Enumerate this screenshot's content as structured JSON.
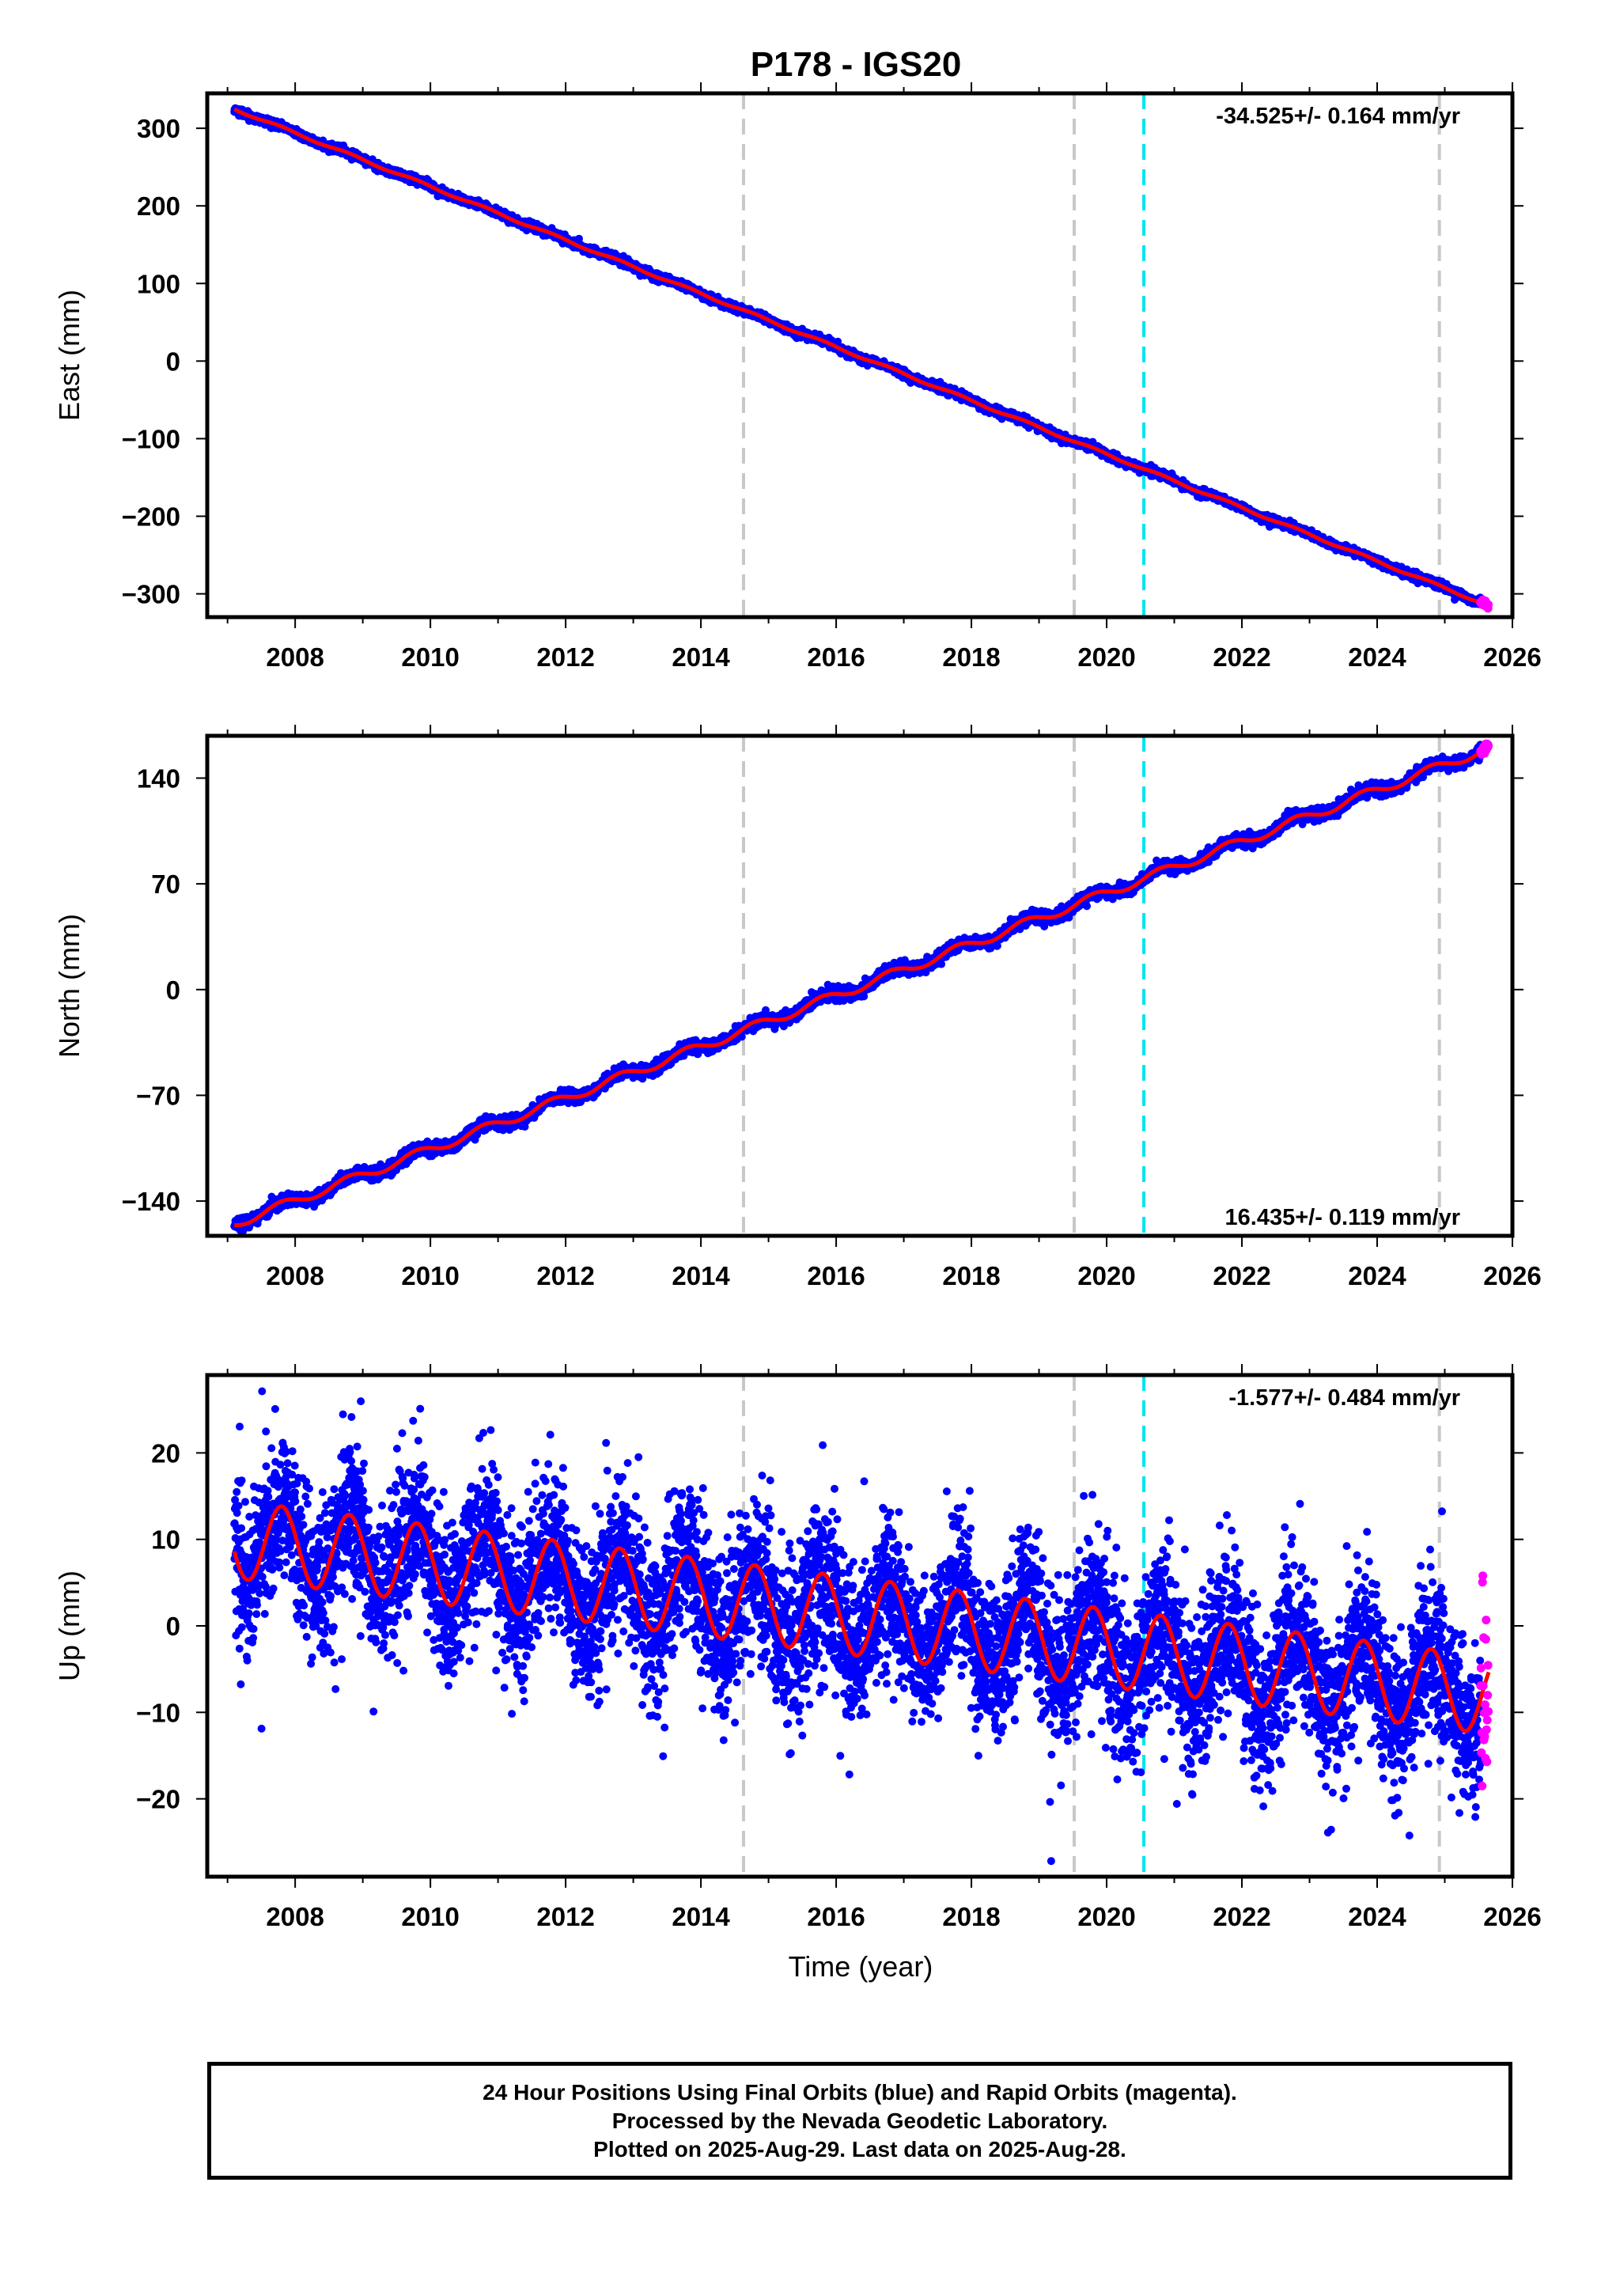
{
  "title": "P178 - IGS20",
  "xlabel": "Time (year)",
  "footer": {
    "line1": "24 Hour Positions Using Final Orbits (blue) and Rapid Orbits (magenta).",
    "line2": "Processed by the Nevada Geodetic Laboratory.",
    "line3": "Plotted on 2025-Aug-29. Last data on 2025-Aug-28."
  },
  "colors": {
    "final_orbits": "#0000ff",
    "rapid_orbits": "#ff00ff",
    "model_fit": "#ff0000",
    "equipment_change_line": "#c8c8c8",
    "earthquake_line": "#00e5ee"
  },
  "chart_data": [
    {
      "type": "scatter",
      "component": "east",
      "ylabel": "East (mm)",
      "xlim": [
        2006.7,
        2026.0
      ],
      "ylim": [
        -330,
        345
      ],
      "xticks": [
        2008,
        2010,
        2012,
        2014,
        2016,
        2018,
        2020,
        2022,
        2024,
        2026
      ],
      "yticks": [
        -300,
        -200,
        -100,
        0,
        100,
        200,
        300
      ],
      "rate_label": "-34.525+/- 0.164 mm/yr",
      "rate_label_position": "top-right",
      "rate_mm_per_yr": -34.525,
      "data_start": 2007.1,
      "data_end": 2025.65,
      "value_at_start": 325,
      "value_at_end": -315,
      "annual_amplitude": 1.5,
      "noise": 2.5,
      "equipment_change_lines": [
        2014.63,
        2019.52,
        2024.92
      ],
      "earthquake_lines": [
        2020.55
      ],
      "grid": false
    },
    {
      "type": "scatter",
      "component": "north",
      "ylabel": "North (mm)",
      "xlim": [
        2006.7,
        2026.0
      ],
      "ylim": [
        -163,
        168
      ],
      "xticks": [
        2008,
        2010,
        2012,
        2014,
        2016,
        2018,
        2020,
        2022,
        2024,
        2026
      ],
      "yticks": [
        -140,
        -70,
        0,
        70,
        140
      ],
      "rate_label": "16.435+/- 0.119 mm/yr",
      "rate_label_position": "bottom-right",
      "rate_mm_per_yr": 16.435,
      "data_start": 2007.1,
      "data_end": 2025.65,
      "value_at_start": -155,
      "value_at_end": 160,
      "annual_amplitude": 3,
      "noise": 2,
      "equipment_change_lines": [
        2014.63,
        2019.52,
        2024.92
      ],
      "earthquake_lines": [
        2020.55
      ],
      "grid": false
    },
    {
      "type": "scatter",
      "component": "up",
      "ylabel": "Up (mm)",
      "xlim": [
        2006.7,
        2026.0
      ],
      "ylim": [
        -29,
        29
      ],
      "xticks": [
        2008,
        2010,
        2012,
        2014,
        2016,
        2018,
        2020,
        2022,
        2024,
        2026
      ],
      "yticks": [
        -20,
        -10,
        0,
        10,
        20
      ],
      "rate_label": "-1.577+/- 0.484 mm/yr",
      "rate_label_position": "top-right",
      "rate_mm_per_yr": -1.577,
      "data_start": 2007.1,
      "data_end": 2025.65,
      "value_at_start": 10,
      "value_at_end": -8,
      "annual_amplitude": 4.5,
      "noise": 4.5,
      "equipment_change_lines": [
        2014.63,
        2019.52,
        2024.92
      ],
      "earthquake_lines": [
        2020.55
      ],
      "grid": false
    }
  ]
}
